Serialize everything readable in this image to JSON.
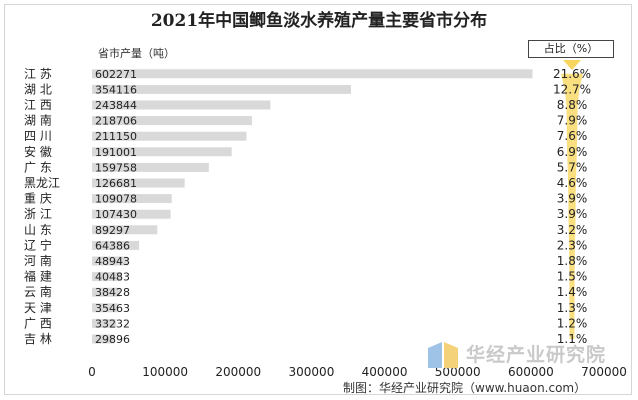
{
  "chart_data": {
    "type": "bar",
    "orientation": "horizontal",
    "title": "2021年中国鲫鱼淡水养殖产量主要省市分布",
    "value_label": "省市产量（吨）",
    "pct_label": "占比（%）",
    "categories": [
      "江  苏",
      "湖  北",
      "江  西",
      "湖  南",
      "四  川",
      "安  徽",
      "广  东",
      "黑龙江",
      "重  庆",
      "浙  江",
      "山  东",
      "辽  宁",
      "河  南",
      "福  建",
      "云  南",
      "天  津",
      "广  西",
      "吉  林"
    ],
    "values": [
      602271,
      354116,
      243844,
      218706,
      211150,
      191001,
      159758,
      126681,
      109078,
      107430,
      89297,
      64386,
      48943,
      40483,
      38428,
      35463,
      33232,
      29896
    ],
    "value_labels": [
      "602271",
      "354116",
      "243844",
      "218706",
      "211150",
      "191001",
      "159758",
      "126681",
      "109078",
      "107430",
      "89297",
      "64386",
      "48943",
      "40483",
      "38428",
      "35463",
      "33232",
      "29896"
    ],
    "percents": [
      21.6,
      12.7,
      8.8,
      7.9,
      7.6,
      6.9,
      5.7,
      4.6,
      3.9,
      3.9,
      3.2,
      2.3,
      1.8,
      1.5,
      1.4,
      1.3,
      1.2,
      1.1
    ],
    "percent_labels": [
      "21.6%",
      "12.7%",
      "8.8%",
      "7.9%",
      "7.6%",
      "6.9%",
      "5.7%",
      "4.6%",
      "3.9%",
      "3.9%",
      "3.2%",
      "2.3%",
      "1.8%",
      "1.5%",
      "1.4%",
      "1.3%",
      "1.2%",
      "1.1%"
    ],
    "xlim": [
      0,
      700000
    ],
    "xticks": [
      0,
      100000,
      200000,
      300000,
      400000,
      500000,
      600000,
      700000
    ],
    "xtick_labels": [
      "0",
      "100000",
      "200000",
      "300000",
      "400000",
      "500000",
      "600000",
      "700000"
    ],
    "grid": false,
    "bar_color": "#d9d9d9",
    "pct_marker_color": "#f5c518"
  },
  "watermark": "华经产业研究院",
  "source": "制图：华经产业研究院（www.huaon.com）"
}
